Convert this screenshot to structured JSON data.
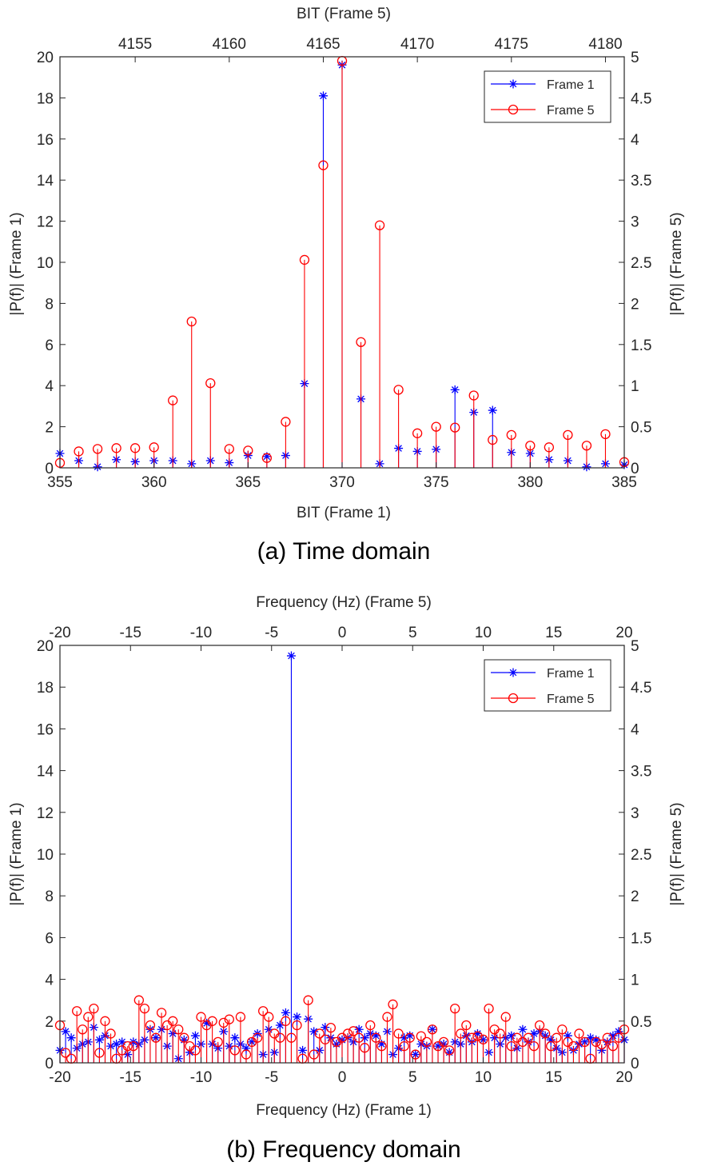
{
  "colors": {
    "frame1": "#0000ff",
    "frame5": "#ff0000",
    "axis": "#262626"
  },
  "chart_data": [
    {
      "type": "stem",
      "caption": "(a) Time domain",
      "xlabel_bottom": "BIT (Frame 1)",
      "xlabel_top": "BIT (Frame 5)",
      "ylabel_left": "|P(f)| (Frame 1)",
      "ylabel_right": "|P(f)| (Frame 5)",
      "xlim_bottom": [
        355,
        385
      ],
      "xticks_bottom": [
        "355",
        "360",
        "365",
        "370",
        "375",
        "380",
        "385"
      ],
      "xlim_top": [
        4151,
        4181
      ],
      "xticks_top": [
        "4155",
        "4160",
        "4165",
        "4170",
        "4175",
        "4180"
      ],
      "ylim_left": [
        0,
        20
      ],
      "yticks_left": [
        "0",
        "2",
        "4",
        "6",
        "8",
        "10",
        "12",
        "14",
        "16",
        "18",
        "20"
      ],
      "ylim_right": [
        0,
        5
      ],
      "yticks_right": [
        "0",
        "0.5",
        "1",
        "1.5",
        "2",
        "2.5",
        "3",
        "3.5",
        "4",
        "4.5",
        "5"
      ],
      "legend": {
        "position": "top-right",
        "entries": [
          "Frame 1",
          "Frame 5"
        ]
      },
      "series": [
        {
          "name": "Frame 1",
          "marker": "star",
          "axis": "left",
          "axis_x": "bottom",
          "x": [
            355,
            356,
            357,
            358,
            359,
            360,
            361,
            362,
            363,
            364,
            365,
            366,
            367,
            368,
            369,
            370,
            371,
            372,
            373,
            374,
            375,
            376,
            377,
            378,
            379,
            380,
            381,
            382,
            383,
            384,
            385
          ],
          "y": [
            0.7,
            0.35,
            0.05,
            0.4,
            0.3,
            0.35,
            0.35,
            0.2,
            0.35,
            0.25,
            0.6,
            0.55,
            0.6,
            4.1,
            18.1,
            19.6,
            3.35,
            0.2,
            0.95,
            0.8,
            0.9,
            3.8,
            2.7,
            2.8,
            0.75,
            0.7,
            0.4,
            0.35,
            0.05,
            0.2,
            0.15
          ]
        },
        {
          "name": "Frame 5",
          "marker": "circle",
          "axis": "right",
          "axis_x": "top",
          "x": [
            4151,
            4152,
            4153,
            4154,
            4155,
            4156,
            4157,
            4158,
            4159,
            4160,
            4161,
            4162,
            4163,
            4164,
            4165,
            4166,
            4167,
            4168,
            4169,
            4170,
            4171,
            4172,
            4173,
            4174,
            4175,
            4176,
            4177,
            4178,
            4179,
            4180,
            4181
          ],
          "y": [
            0.06,
            0.2,
            0.23,
            0.24,
            0.24,
            0.25,
            0.82,
            1.78,
            1.03,
            0.23,
            0.21,
            0.12,
            0.56,
            2.53,
            3.68,
            4.95,
            1.53,
            2.95,
            0.95,
            0.42,
            0.5,
            0.49,
            0.88,
            0.34,
            0.4,
            0.27,
            0.25,
            0.4,
            0.27,
            0.41,
            0.07
          ]
        }
      ]
    },
    {
      "type": "stem",
      "caption": "(b) Frequency domain",
      "xlabel_bottom": "Frequency (Hz) (Frame 1)",
      "xlabel_top": "Frequency (Hz) (Frame 5)",
      "ylabel_left": "|P(f)| (Frame 1)",
      "ylabel_right": "|P(f)| (Frame 5)",
      "xlim_bottom": [
        -20,
        20
      ],
      "xticks_bottom": [
        "-20",
        "-15",
        "-10",
        "-5",
        "0",
        "5",
        "10",
        "15",
        "20"
      ],
      "xlim_top": [
        -20,
        20
      ],
      "xticks_top": [
        "-20",
        "-15",
        "-10",
        "-5",
        "0",
        "5",
        "10",
        "15",
        "20"
      ],
      "ylim_left": [
        0,
        20
      ],
      "yticks_left": [
        "0",
        "2",
        "4",
        "6",
        "8",
        "10",
        "12",
        "14",
        "16",
        "18",
        "20"
      ],
      "ylim_right": [
        0,
        5
      ],
      "yticks_right": [
        "0",
        "0.5",
        "1",
        "1.5",
        "2",
        "2.5",
        "3",
        "3.5",
        "4",
        "4.5",
        "5"
      ],
      "legend": {
        "position": "top-right",
        "entries": [
          "Frame 1",
          "Frame 5"
        ]
      },
      "x_start": -20,
      "x_step": 0.4,
      "series": [
        {
          "name": "Frame 1",
          "marker": "star",
          "axis": "left",
          "axis_x": "bottom",
          "y": [
            0.6,
            1.5,
            1.2,
            0.7,
            0.9,
            1.0,
            1.7,
            1.1,
            1.3,
            0.8,
            0.9,
            1.0,
            0.4,
            1.0,
            0.9,
            1.1,
            1.6,
            1.2,
            1.6,
            0.8,
            1.4,
            0.2,
            1.1,
            0.5,
            1.3,
            0.9,
            1.9,
            0.9,
            0.7,
            1.5,
            0.8,
            1.2,
            0.9,
            0.7,
            1.0,
            1.4,
            0.4,
            1.6,
            0.5,
            1.8,
            2.4,
            19.5,
            2.2,
            0.6,
            2.1,
            1.5,
            0.6,
            1.7,
            1.2,
            0.9,
            1.1,
            1.2,
            1.0,
            1.6,
            1.2,
            1.4,
            1.3,
            0.9,
            1.5,
            0.4,
            0.7,
            1.2,
            1.3,
            0.4,
            0.9,
            0.8,
            1.6,
            0.8,
            0.9,
            0.5,
            1.0,
            0.9,
            1.3,
            1.0,
            1.4,
            1.1,
            0.5,
            1.2,
            0.9,
            1.2,
            1.3,
            0.7,
            1.6,
            1.0,
            1.4,
            1.5,
            1.3,
            1.1,
            0.7,
            0.5,
            1.3,
            0.6,
            0.9,
            1.0,
            1.2,
            1.1,
            0.6,
            1.0,
            1.3,
            1.5,
            1.1
          ]
        },
        {
          "name": "Frame 5",
          "marker": "circle",
          "axis": "right",
          "axis_x": "top",
          "y": [
            0.45,
            0.12,
            0.05,
            0.62,
            0.4,
            0.55,
            0.65,
            0.12,
            0.5,
            0.35,
            0.05,
            0.15,
            0.2,
            0.2,
            0.75,
            0.65,
            0.45,
            0.3,
            0.6,
            0.45,
            0.5,
            0.4,
            0.3,
            0.2,
            0.15,
            0.55,
            0.45,
            0.5,
            0.25,
            0.48,
            0.52,
            0.15,
            0.55,
            0.1,
            0.25,
            0.3,
            0.62,
            0.55,
            0.35,
            0.3,
            0.5,
            0.3,
            0.45,
            0.05,
            0.75,
            0.1,
            0.35,
            0.28,
            0.42,
            0.25,
            0.3,
            0.35,
            0.38,
            0.3,
            0.18,
            0.45,
            0.3,
            0.2,
            0.55,
            0.7,
            0.35,
            0.2,
            0.3,
            0.1,
            0.32,
            0.25,
            0.4,
            0.2,
            0.25,
            0.15,
            0.65,
            0.35,
            0.45,
            0.3,
            0.32,
            0.28,
            0.65,
            0.4,
            0.35,
            0.55,
            0.2,
            0.3,
            0.25,
            0.3,
            0.2,
            0.45,
            0.35,
            0.2,
            0.3,
            0.4,
            0.25,
            0.2,
            0.35,
            0.25,
            0.05,
            0.25,
            0.22,
            0.3,
            0.2,
            0.3,
            0.4
          ]
        }
      ]
    }
  ]
}
